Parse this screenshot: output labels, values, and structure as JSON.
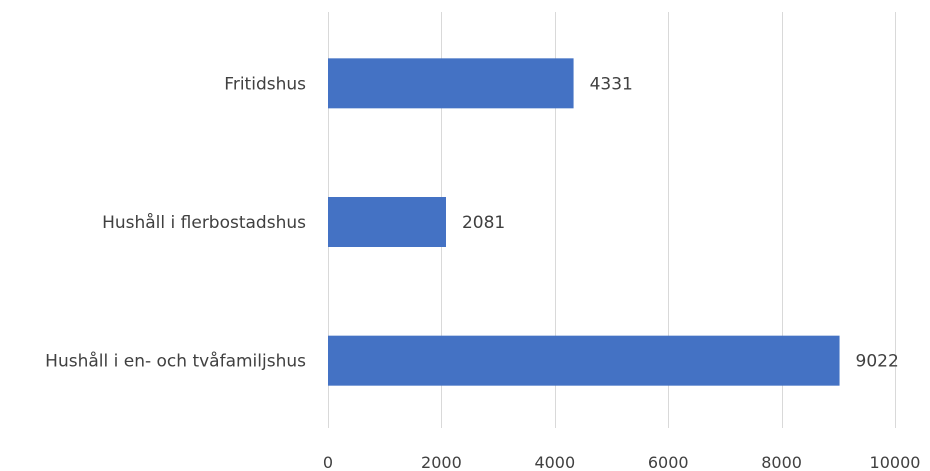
{
  "chart_data": {
    "type": "bar",
    "orientation": "horizontal",
    "categories": [
      "Fritidshus",
      "Hushåll i flerbostadshus",
      "Hushåll i en- och tvåfamiljshus"
    ],
    "values": [
      4331,
      2081,
      9022
    ],
    "data_labels": [
      "4331",
      "2081",
      "9022"
    ],
    "title": "",
    "xlabel": "",
    "ylabel": "",
    "xlim": [
      0,
      10000
    ],
    "xticks": [
      0,
      2000,
      4000,
      6000,
      8000,
      10000
    ],
    "xtick_labels": [
      "0",
      "2000",
      "4000",
      "6000",
      "8000",
      "10000"
    ],
    "grid": true,
    "legend": "none",
    "bar_color": "#4472C4",
    "text_color": "#404040",
    "grid_color": "#D9D9D9"
  }
}
